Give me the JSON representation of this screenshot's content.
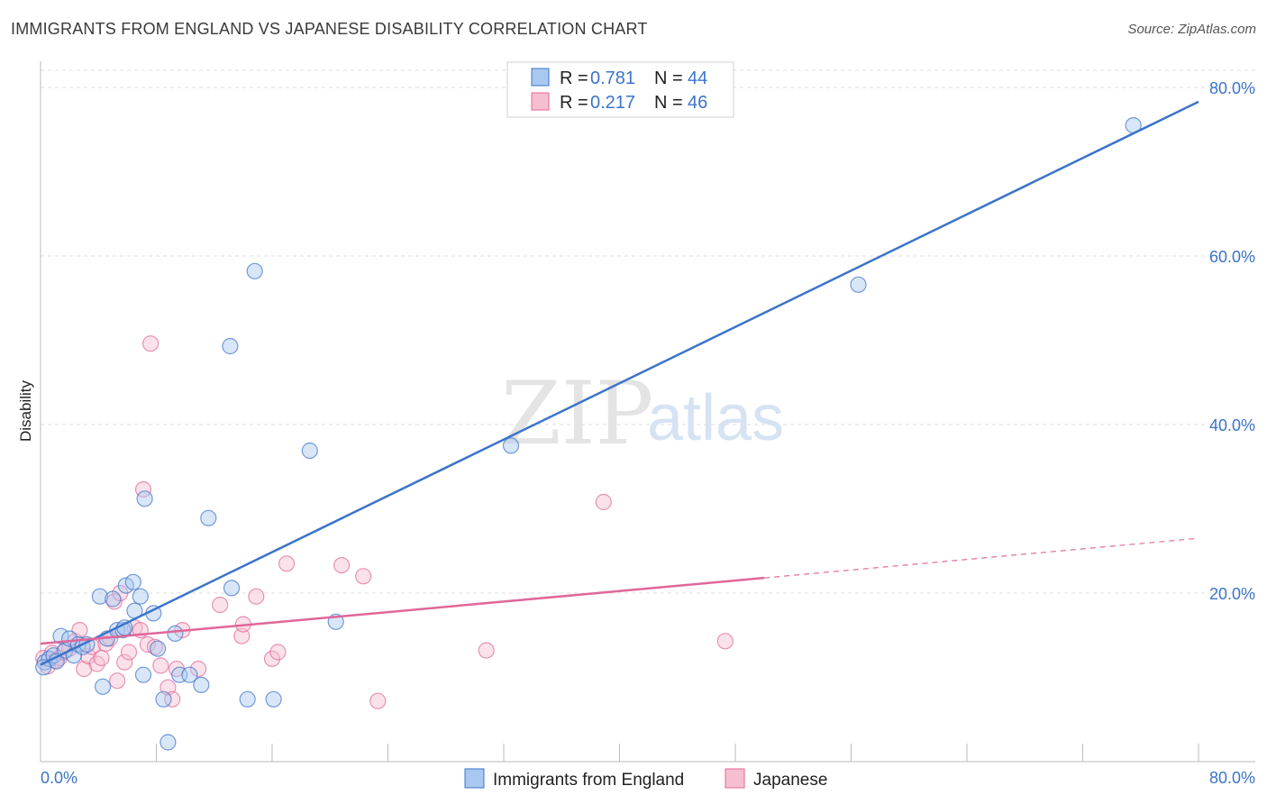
{
  "header": {
    "title": "IMMIGRANTS FROM ENGLAND VS JAPANESE DISABILITY CORRELATION CHART",
    "source": "Source: ZipAtlas.com"
  },
  "watermark": {
    "part1": "ZIP",
    "part2": "atlas"
  },
  "legend": {
    "rows": [
      {
        "r_label": "R = ",
        "r_value": "0.781",
        "n_label": "N = ",
        "n_value": "44",
        "color": "#a9c8f0"
      },
      {
        "r_label": "R = ",
        "r_value": "0.217",
        "n_label": "N = ",
        "n_value": "46",
        "color": "#f6bfd0"
      }
    ]
  },
  "chart_data": {
    "type": "scatter",
    "title": "IMMIGRANTS FROM ENGLAND VS JAPANESE DISABILITY CORRELATION CHART",
    "xlabel": "",
    "ylabel": "Disability",
    "xlim": [
      0,
      80
    ],
    "ylim": [
      0,
      80
    ],
    "x_tick_labels": [
      "0.0%",
      "80.0%"
    ],
    "y_ticks": [
      20,
      40,
      60,
      80
    ],
    "y_tick_labels": [
      "20.0%",
      "40.0%",
      "60.0%",
      "80.0%"
    ],
    "grid": true,
    "legend_position": "top-center",
    "series": [
      {
        "name": "Immigrants from England",
        "color": "#3b74c9",
        "fill": "#a9c8f0",
        "trend": {
          "x": [
            0,
            80
          ],
          "y": [
            11.5,
            78.3
          ],
          "style": "solid"
        },
        "points": [
          [
            0.3,
            11.8
          ],
          [
            0.6,
            12.2
          ],
          [
            0.9,
            12.6
          ],
          [
            1.1,
            11.9
          ],
          [
            1.4,
            14.9
          ],
          [
            1.7,
            13.2
          ],
          [
            2.0,
            14.6
          ],
          [
            2.3,
            12.6
          ],
          [
            2.6,
            13.9
          ],
          [
            2.9,
            13.6
          ],
          [
            3.2,
            13.9
          ],
          [
            4.1,
            19.6
          ],
          [
            4.3,
            8.9
          ],
          [
            4.6,
            14.6
          ],
          [
            5.0,
            19.3
          ],
          [
            5.3,
            15.6
          ],
          [
            5.7,
            15.6
          ],
          [
            5.8,
            15.9
          ],
          [
            5.9,
            20.9
          ],
          [
            6.4,
            21.3
          ],
          [
            6.5,
            17.9
          ],
          [
            6.9,
            19.6
          ],
          [
            7.1,
            10.3
          ],
          [
            7.2,
            31.2
          ],
          [
            7.8,
            17.6
          ],
          [
            8.1,
            13.4
          ],
          [
            8.5,
            7.4
          ],
          [
            8.8,
            2.3
          ],
          [
            9.3,
            15.2
          ],
          [
            9.6,
            10.3
          ],
          [
            10.3,
            10.3
          ],
          [
            11.1,
            9.1
          ],
          [
            11.6,
            28.9
          ],
          [
            13.1,
            49.3
          ],
          [
            13.2,
            20.6
          ],
          [
            14.3,
            7.4
          ],
          [
            14.8,
            58.2
          ],
          [
            16.1,
            7.4
          ],
          [
            18.6,
            36.9
          ],
          [
            20.4,
            16.6
          ],
          [
            32.5,
            37.5
          ],
          [
            56.5,
            56.6
          ],
          [
            75.5,
            75.5
          ],
          [
            0.2,
            11.2
          ]
        ]
      },
      {
        "name": "Japanese",
        "color": "#e0669a",
        "fill": "#f6bfd0",
        "trend": {
          "x": [
            0,
            50
          ],
          "y": [
            14.0,
            21.8
          ],
          "style": "solid"
        },
        "trend_extension": {
          "x": [
            50,
            80
          ],
          "y": [
            21.8,
            26.5
          ],
          "style": "dashed"
        },
        "points": [
          [
            0.2,
            12.3
          ],
          [
            0.5,
            11.3
          ],
          [
            0.8,
            12.9
          ],
          [
            1.0,
            12.0
          ],
          [
            1.3,
            12.3
          ],
          [
            1.6,
            13.0
          ],
          [
            2.0,
            13.4
          ],
          [
            2.4,
            14.3
          ],
          [
            2.7,
            15.6
          ],
          [
            3.0,
            11.0
          ],
          [
            3.3,
            12.5
          ],
          [
            3.6,
            13.6
          ],
          [
            3.9,
            11.6
          ],
          [
            4.2,
            12.3
          ],
          [
            4.5,
            14.0
          ],
          [
            4.8,
            14.6
          ],
          [
            5.1,
            19.0
          ],
          [
            5.3,
            9.6
          ],
          [
            5.5,
            20.0
          ],
          [
            5.8,
            11.8
          ],
          [
            6.1,
            13.0
          ],
          [
            6.5,
            15.9
          ],
          [
            6.9,
            15.6
          ],
          [
            7.1,
            32.3
          ],
          [
            7.4,
            13.9
          ],
          [
            7.6,
            49.6
          ],
          [
            7.9,
            13.6
          ],
          [
            8.3,
            11.4
          ],
          [
            8.8,
            8.8
          ],
          [
            9.1,
            7.4
          ],
          [
            9.4,
            11.0
          ],
          [
            9.8,
            15.6
          ],
          [
            10.9,
            11.0
          ],
          [
            12.4,
            18.6
          ],
          [
            13.9,
            14.9
          ],
          [
            14.0,
            16.3
          ],
          [
            14.9,
            19.6
          ],
          [
            16.0,
            12.2
          ],
          [
            16.4,
            13.0
          ],
          [
            17.0,
            23.5
          ],
          [
            20.8,
            23.3
          ],
          [
            22.3,
            22.0
          ],
          [
            23.3,
            7.2
          ],
          [
            30.8,
            13.2
          ],
          [
            38.9,
            30.8
          ],
          [
            47.3,
            14.3
          ]
        ]
      }
    ]
  }
}
